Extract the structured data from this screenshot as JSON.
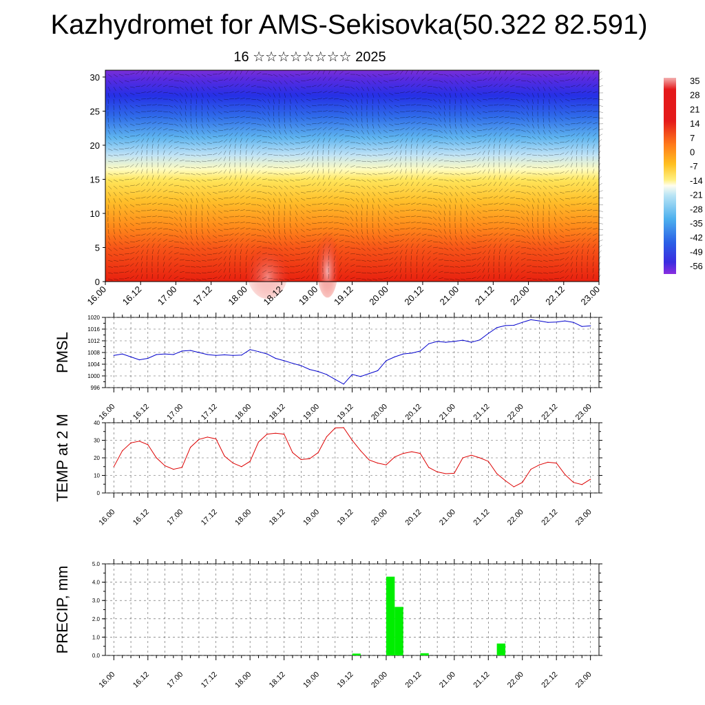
{
  "header": {
    "title": "Kazhydromet for AMS-Sekisovka(50.322 82.591)",
    "date_label": "16 ☆☆☆☆☆☆☆☆ 2025"
  },
  "x_ticks": [
    "16.00",
    "16.12",
    "17.00",
    "17.12",
    "18.00",
    "18.12",
    "19.00",
    "19.12",
    "20.00",
    "20.12",
    "21.00",
    "21.12",
    "22.00",
    "22.12",
    "23.00"
  ],
  "chart_data": [
    {
      "type": "heatmap",
      "title": "",
      "ylabel": "",
      "y_ticks": [
        "0",
        "5",
        "10",
        "15",
        "20",
        "25",
        "30"
      ],
      "ylim": [
        0,
        31
      ],
      "colorbar_ticks": [
        "35",
        "28",
        "21",
        "14",
        "7",
        "0",
        "-7",
        "-14",
        "-21",
        "-28",
        "-35",
        "-42",
        "-49",
        "-56"
      ],
      "colorbar_range": [
        -60,
        38
      ],
      "grid": false
    },
    {
      "type": "line",
      "ylabel": "PMSL",
      "ylim": [
        996,
        1020
      ],
      "y_ticks": [
        "1020",
        "1016",
        "1012",
        "1008",
        "1004",
        "1000",
        "996"
      ],
      "color": "#0000cc",
      "x": [
        0,
        3,
        6,
        9,
        12,
        15,
        18,
        21,
        24,
        27,
        30,
        33,
        36,
        39,
        42,
        45,
        48,
        51,
        54,
        57,
        60,
        63,
        66,
        69,
        72,
        75,
        78,
        81,
        84,
        87,
        90,
        93,
        96,
        99,
        102,
        105,
        108,
        111,
        114,
        117,
        120,
        123,
        126,
        129,
        132,
        135,
        138,
        141,
        144,
        147,
        150,
        153,
        156,
        159,
        162,
        165,
        168
      ],
      "values": [
        1007,
        1007.5,
        1006.5,
        1005.5,
        1006,
        1007.3,
        1007.5,
        1007.3,
        1008.5,
        1008.7,
        1008,
        1007.3,
        1007,
        1007.2,
        1007,
        1007.1,
        1009,
        1008.3,
        1007.5,
        1006,
        1005.2,
        1004.3,
        1003.5,
        1002.2,
        1001.5,
        1000.5,
        998.8,
        997.2,
        1000.5,
        999.8,
        1000.8,
        1001.8,
        1005.2,
        1006.5,
        1007.5,
        1007.8,
        1008.5,
        1011,
        1011.8,
        1011.5,
        1011.8,
        1012.2,
        1011.5,
        1012.3,
        1014.5,
        1016.5,
        1017.2,
        1017.3,
        1018.3,
        1019.2,
        1018.8,
        1018.3,
        1018.4,
        1018.8,
        1018.3,
        1016.9,
        1017.1
      ],
      "grid": true
    },
    {
      "type": "line",
      "ylabel": "TEMP at 2 M",
      "ylim": [
        0,
        40
      ],
      "y_ticks": [
        "40",
        "30",
        "20",
        "10",
        "0"
      ],
      "color": "#dd0000",
      "x": [
        0,
        3,
        6,
        9,
        12,
        15,
        18,
        21,
        24,
        27,
        30,
        33,
        36,
        39,
        42,
        45,
        48,
        51,
        54,
        57,
        60,
        63,
        66,
        69,
        72,
        75,
        78,
        81,
        84,
        87,
        90,
        93,
        96,
        99,
        102,
        105,
        108,
        111,
        114,
        117,
        120,
        123,
        126,
        129,
        132,
        135,
        138,
        141,
        144,
        147,
        150,
        153,
        156,
        159,
        162,
        165,
        168
      ],
      "values": [
        15,
        24,
        28.5,
        29.5,
        27.5,
        20,
        15.5,
        13.5,
        14.5,
        26,
        30.5,
        31.8,
        30.8,
        21,
        17,
        15,
        18,
        29,
        33.5,
        34,
        33.5,
        23,
        19,
        19.5,
        23,
        32,
        37,
        37.2,
        30,
        24,
        18.8,
        17,
        16,
        20.5,
        22.5,
        23.5,
        22.5,
        14.5,
        12,
        11,
        11.2,
        20,
        21.5,
        20,
        18,
        11,
        7,
        3.5,
        6,
        13.5,
        16,
        17.5,
        17,
        10.5,
        6,
        4.8,
        7.8
      ],
      "grid": true
    },
    {
      "type": "bar",
      "ylabel": "PRECIP, mm",
      "ylim": [
        0,
        5
      ],
      "y_ticks": [
        "5.0",
        "4.0",
        "3.0",
        "2.0",
        "1.0",
        "0.0"
      ],
      "color": "#00ee00",
      "x": [
        84,
        96,
        99,
        108,
        135
      ],
      "bar_width_hours": 3,
      "values": [
        0.1,
        4.3,
        2.65,
        0.12,
        0.65
      ],
      "grid": true
    }
  ]
}
